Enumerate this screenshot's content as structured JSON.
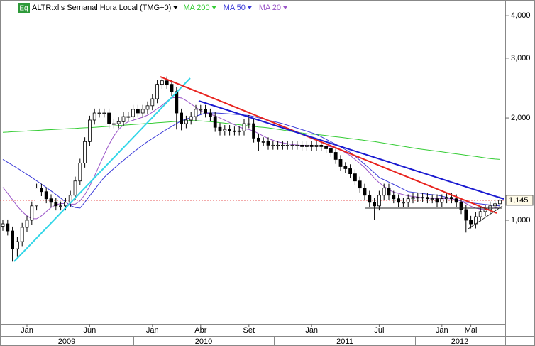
{
  "header": {
    "icon": "Eq",
    "symbol": "ALTR:xlis Semanal Hora Local (TMG+0)"
  },
  "chart_data": {
    "type": "candlestick",
    "ylog": true,
    "ylim": [
      495,
      4450
    ],
    "yticks": [
      {
        "value": 1000,
        "label": "1,000"
      },
      {
        "value": 2000,
        "label": "2,000"
      },
      {
        "value": 3000,
        "label": "3,000"
      },
      {
        "value": 4000,
        "label": "4,000"
      }
    ],
    "categories": [
      null,
      null,
      null,
      null,
      null,
      "Jan",
      null,
      null,
      null,
      null,
      null,
      null,
      null,
      null,
      null,
      null,
      null,
      null,
      "Jun",
      null,
      null,
      null,
      null,
      null,
      null,
      null,
      null,
      null,
      null,
      null,
      null,
      "Jan",
      null,
      null,
      null,
      null,
      null,
      null,
      null,
      null,
      null,
      "Abr",
      null,
      null,
      null,
      null,
      null,
      null,
      null,
      null,
      null,
      "Set",
      null,
      null,
      null,
      null,
      null,
      null,
      null,
      null,
      null,
      null,
      null,
      null,
      "Jan",
      null,
      null,
      null,
      null,
      null,
      null,
      null,
      null,
      null,
      null,
      null,
      null,
      null,
      "Jul",
      null,
      null,
      null,
      null,
      null,
      null,
      null,
      null,
      null,
      null,
      null,
      null,
      "Jan",
      null,
      null,
      null,
      null,
      null,
      "Mai",
      null,
      null,
      null,
      null,
      null,
      null
    ],
    "years": [
      "2009",
      "2010",
      "2011",
      "2012"
    ],
    "candles": [
      [
        960,
        1005,
        931,
        976
      ],
      [
        976,
        1005,
        902,
        930
      ],
      [
        930,
        958,
        755,
        824
      ],
      [
        824,
        891,
        780,
        865
      ],
      [
        865,
        982,
        839,
        953
      ],
      [
        953,
        1030,
        924,
        1000
      ],
      [
        1000,
        1135,
        970,
        1102
      ],
      [
        1102,
        1281,
        1069,
        1244
      ],
      [
        1244,
        1281,
        1178,
        1214
      ],
      [
        1214,
        1250,
        1122,
        1157
      ],
      [
        1157,
        1192,
        1095,
        1129
      ],
      [
        1129,
        1163,
        1069,
        1102
      ],
      [
        1102,
        1135,
        1069,
        1102
      ],
      [
        1102,
        1163,
        1069,
        1129
      ],
      [
        1129,
        1221,
        1095,
        1185
      ],
      [
        1185,
        1344,
        1149,
        1305
      ],
      [
        1305,
        1517,
        1266,
        1473
      ],
      [
        1473,
        1755,
        1429,
        1704
      ],
      [
        1704,
        2031,
        1653,
        1972
      ],
      [
        1972,
        2131,
        1913,
        2069
      ],
      [
        2069,
        2131,
        2007,
        2069
      ],
      [
        2069,
        2131,
        2007,
        2069
      ],
      [
        2069,
        2131,
        1866,
        1924
      ],
      [
        1924,
        1982,
        1866,
        1924
      ],
      [
        1924,
        2009,
        1866,
        1950
      ],
      [
        1950,
        2080,
        1892,
        2019
      ],
      [
        2019,
        2080,
        1958,
        2019
      ],
      [
        2019,
        2185,
        1958,
        2121
      ],
      [
        2121,
        2185,
        2007,
        2069
      ],
      [
        2069,
        2185,
        2007,
        2121
      ],
      [
        2121,
        2238,
        2057,
        2173
      ],
      [
        2173,
        2346,
        2108,
        2278
      ],
      [
        2278,
        2588,
        2210,
        2513
      ],
      [
        2513,
        2651,
        2438,
        2574
      ],
      [
        2574,
        2651,
        2438,
        2513
      ],
      [
        2513,
        2588,
        2321,
        2393
      ],
      [
        2393,
        2465,
        1850,
        2069
      ],
      [
        2069,
        2131,
        1840,
        1924
      ],
      [
        1924,
        2031,
        1866,
        1972
      ],
      [
        1972,
        2080,
        1913,
        2019
      ],
      [
        2019,
        2185,
        1958,
        2121
      ],
      [
        2121,
        2185,
        2057,
        2121
      ],
      [
        2121,
        2185,
        2007,
        2069
      ],
      [
        2069,
        2131,
        1958,
        2019
      ],
      [
        2019,
        2080,
        1821,
        1877
      ],
      [
        1877,
        1933,
        1777,
        1832
      ],
      [
        1832,
        1906,
        1777,
        1850
      ],
      [
        1850,
        1906,
        1777,
        1832
      ],
      [
        1832,
        1887,
        1777,
        1832
      ],
      [
        1832,
        1887,
        1777,
        1832
      ],
      [
        1832,
        1982,
        1777,
        1924
      ],
      [
        1924,
        2040,
        1866,
        1924
      ],
      [
        1924,
        1982,
        1693,
        1745
      ],
      [
        1745,
        1797,
        1600,
        1704
      ],
      [
        1704,
        1755,
        1653,
        1704
      ],
      [
        1704,
        1755,
        1613,
        1663
      ],
      [
        1663,
        1713,
        1613,
        1663
      ],
      [
        1663,
        1713,
        1613,
        1663
      ],
      [
        1663,
        1713,
        1613,
        1663
      ],
      [
        1663,
        1713,
        1613,
        1663
      ],
      [
        1663,
        1713,
        1613,
        1663
      ],
      [
        1663,
        1713,
        1613,
        1663
      ],
      [
        1663,
        1713,
        1598,
        1647
      ],
      [
        1647,
        1713,
        1598,
        1663
      ],
      [
        1663,
        1713,
        1598,
        1647
      ],
      [
        1647,
        1713,
        1598,
        1663
      ],
      [
        1663,
        1713,
        1598,
        1647
      ],
      [
        1647,
        1696,
        1574,
        1623
      ],
      [
        1623,
        1672,
        1536,
        1584
      ],
      [
        1584,
        1632,
        1465,
        1510
      ],
      [
        1510,
        1555,
        1396,
        1439
      ],
      [
        1439,
        1482,
        1375,
        1418
      ],
      [
        1418,
        1461,
        1329,
        1370
      ],
      [
        1370,
        1411,
        1266,
        1305
      ],
      [
        1305,
        1344,
        1207,
        1244
      ],
      [
        1244,
        1281,
        1149,
        1185
      ],
      [
        1185,
        1221,
        1095,
        1129
      ],
      [
        1129,
        1163,
        1000,
        1102
      ],
      [
        1102,
        1221,
        1069,
        1185
      ],
      [
        1185,
        1281,
        1149,
        1244
      ],
      [
        1244,
        1281,
        1149,
        1185
      ],
      [
        1185,
        1221,
        1122,
        1157
      ],
      [
        1157,
        1192,
        1095,
        1129
      ],
      [
        1129,
        1163,
        1095,
        1129
      ],
      [
        1129,
        1192,
        1095,
        1157
      ],
      [
        1157,
        1203,
        1122,
        1168
      ],
      [
        1168,
        1203,
        1133,
        1168
      ],
      [
        1168,
        1203,
        1133,
        1168
      ],
      [
        1168,
        1203,
        1122,
        1157
      ],
      [
        1157,
        1192,
        1122,
        1157
      ],
      [
        1157,
        1192,
        1095,
        1129
      ],
      [
        1129,
        1192,
        1095,
        1157
      ],
      [
        1157,
        1203,
        1122,
        1168
      ],
      [
        1168,
        1203,
        1122,
        1157
      ],
      [
        1157,
        1192,
        1095,
        1129
      ],
      [
        1129,
        1163,
        1043,
        1075
      ],
      [
        1075,
        1107,
        920,
        1000
      ],
      [
        1000,
        1030,
        946,
        976
      ],
      [
        976,
        1055,
        946,
        1024
      ],
      [
        1024,
        1092,
        993,
        1060
      ],
      [
        1060,
        1107,
        1028,
        1075
      ],
      [
        1075,
        1135,
        1043,
        1102
      ],
      [
        1102,
        1152,
        1069,
        1118
      ],
      [
        1118,
        1179,
        1084,
        1145
      ]
    ],
    "series": [
      {
        "name": "MA 200",
        "color": "#33cc33",
        "values": [
          1815,
          1818,
          1822,
          1825,
          1828,
          1831,
          1835,
          1838,
          1841,
          1845,
          1848,
          1851,
          1854,
          1858,
          1861,
          1864,
          1868,
          1871,
          1874,
          1877,
          1882,
          1886,
          1891,
          1895,
          1900,
          1904,
          1909,
          1913,
          1918,
          1922,
          1927,
          1931,
          1936,
          1940,
          1945,
          1949,
          1954,
          1958,
          1963,
          1963,
          1963,
          1960,
          1955,
          1950,
          1945,
          1938,
          1931,
          1924,
          1917,
          1910,
          1903,
          1896,
          1889,
          1882,
          1877,
          1870,
          1861,
          1852,
          1843,
          1834,
          1825,
          1816,
          1807,
          1798,
          1793,
          1789,
          1782,
          1775,
          1768,
          1761,
          1754,
          1747,
          1740,
          1733,
          1726,
          1718,
          1711,
          1704,
          1695,
          1686,
          1677,
          1668,
          1659,
          1650,
          1641,
          1632,
          1623,
          1617,
          1610,
          1603,
          1596,
          1589,
          1582,
          1575,
          1568,
          1561,
          1554,
          1547,
          1540,
          1533,
          1526,
          1519,
          1514,
          1510
        ]
      },
      {
        "name": "MA 50",
        "color": "#3a3ad8",
        "values": [
          1510,
          1481,
          1452,
          1423,
          1394,
          1365,
          1336,
          1307,
          1278,
          1249,
          1220,
          1191,
          1162,
          1133,
          1104,
          1090,
          1086,
          1130,
          1180,
          1230,
          1285,
          1337,
          1378,
          1419,
          1460,
          1501,
          1542,
          1583,
          1624,
          1665,
          1704,
          1741,
          1778,
          1815,
          1852,
          1889,
          1926,
          1963,
          1985,
          2005,
          2025,
          2045,
          2069,
          2069,
          2069,
          2065,
          2060,
          2055,
          2050,
          2045,
          2040,
          2035,
          2019,
          2003,
          1987,
          1971,
          1955,
          1940,
          1924,
          1905,
          1886,
          1867,
          1848,
          1829,
          1810,
          1789,
          1760,
          1731,
          1702,
          1673,
          1644,
          1614,
          1584,
          1543,
          1502,
          1461,
          1420,
          1379,
          1337,
          1316,
          1295,
          1275,
          1255,
          1235,
          1214,
          1209,
          1204,
          1199,
          1194,
          1190,
          1186,
          1177,
          1168,
          1158,
          1148,
          1139,
          1129,
          1125,
          1121,
          1117,
          1113,
          1109,
          1105,
          1102
        ]
      },
      {
        "name": "MA 20",
        "color": "#9a55c8",
        "values": [
          1250,
          1200,
          1150,
          1100,
          1060,
          1030,
          1010,
          1010,
          1030,
          1060,
          1090,
          1110,
          1120,
          1120,
          1115,
          1115,
          1140,
          1190,
          1260,
          1350,
          1450,
          1560,
          1670,
          1770,
          1850,
          1910,
          1950,
          1970,
          1990,
          2010,
          2040,
          2080,
          2130,
          2180,
          2240,
          2290,
          2300,
          2290,
          2250,
          2200,
          2150,
          2100,
          2070,
          2050,
          2030,
          2000,
          1970,
          1940,
          1910,
          1880,
          1860,
          1850,
          1830,
          1800,
          1770,
          1740,
          1720,
          1700,
          1690,
          1680,
          1670,
          1665,
          1660,
          1660,
          1655,
          1655,
          1652,
          1650,
          1645,
          1630,
          1610,
          1580,
          1550,
          1510,
          1470,
          1430,
          1380,
          1330,
          1290,
          1260,
          1230,
          1210,
          1200,
          1190,
          1180,
          1175,
          1170,
          1165,
          1162,
          1160,
          1160,
          1158,
          1158,
          1156,
          1150,
          1140,
          1120,
          1100,
          1085,
          1078,
          1075,
          1080,
          1088,
          1095
        ]
      }
    ],
    "last": {
      "value": 1145,
      "label": "1,145"
    }
  }
}
